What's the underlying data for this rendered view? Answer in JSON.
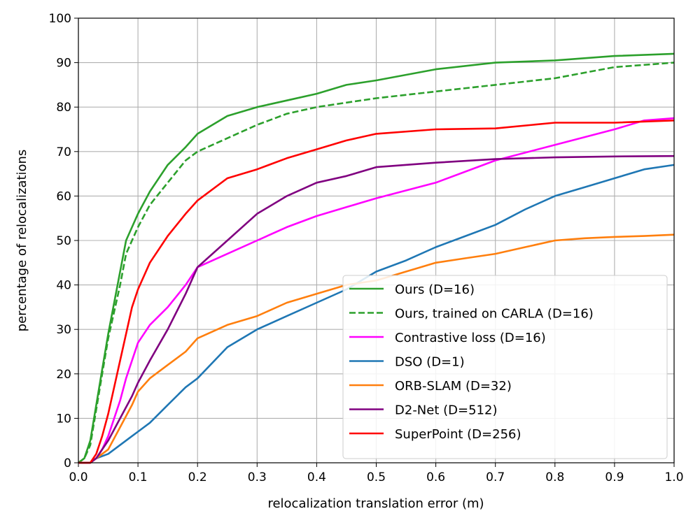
{
  "chart_data": {
    "type": "line",
    "xlabel": "relocalization translation error (m)",
    "ylabel": "percentage of relocalizations",
    "xlim": [
      0.0,
      1.0
    ],
    "ylim": [
      0,
      100
    ],
    "x_ticks": [
      "0.0",
      "0.1",
      "0.2",
      "0.3",
      "0.4",
      "0.5",
      "0.6",
      "0.7",
      "0.8",
      "0.9",
      "1.0"
    ],
    "y_ticks": [
      "0",
      "10",
      "20",
      "30",
      "40",
      "50",
      "60",
      "70",
      "80",
      "90",
      "100"
    ],
    "grid": true,
    "legend_position": "bottom-right",
    "series": [
      {
        "name": "Ours (D=16)",
        "color": "#2ca02c",
        "dash": "solid",
        "x": [
          0.0,
          0.01,
          0.02,
          0.03,
          0.04,
          0.05,
          0.06,
          0.07,
          0.08,
          0.09,
          0.1,
          0.12,
          0.15,
          0.18,
          0.2,
          0.25,
          0.3,
          0.35,
          0.4,
          0.45,
          0.5,
          0.6,
          0.7,
          0.8,
          0.9,
          1.0
        ],
        "y": [
          0,
          1,
          5,
          13,
          21,
          29,
          36,
          43,
          50,
          53,
          56,
          61,
          67,
          71,
          74,
          78,
          80,
          81.5,
          83,
          85,
          86,
          88.5,
          90,
          90.5,
          91.5,
          92
        ]
      },
      {
        "name": "Ours, trained on CARLA (D=16)",
        "color": "#2ca02c",
        "dash": "dashed",
        "x": [
          0.0,
          0.01,
          0.02,
          0.03,
          0.04,
          0.05,
          0.06,
          0.07,
          0.08,
          0.09,
          0.1,
          0.12,
          0.15,
          0.18,
          0.2,
          0.25,
          0.3,
          0.35,
          0.4,
          0.45,
          0.5,
          0.6,
          0.7,
          0.8,
          0.9,
          1.0
        ],
        "y": [
          0,
          1,
          4,
          12,
          20,
          28,
          34,
          40,
          47,
          50,
          53,
          58,
          63,
          68,
          70,
          73,
          76,
          78.5,
          80,
          81,
          82,
          83.5,
          85,
          86.5,
          89,
          90
        ]
      },
      {
        "name": "Contrastive loss (D=16)",
        "color": "#ff00ff",
        "dash": "solid",
        "x": [
          0.0,
          0.02,
          0.03,
          0.04,
          0.05,
          0.06,
          0.07,
          0.08,
          0.09,
          0.1,
          0.12,
          0.15,
          0.18,
          0.2,
          0.25,
          0.3,
          0.35,
          0.4,
          0.45,
          0.5,
          0.6,
          0.7,
          0.8,
          0.9,
          0.95,
          1.0
        ],
        "y": [
          0,
          0,
          1,
          3,
          6,
          10,
          14,
          19,
          23,
          27,
          31,
          35,
          40,
          44,
          47,
          50,
          53,
          55.5,
          57.5,
          59.5,
          63,
          68,
          71.5,
          75,
          77,
          77.5
        ]
      },
      {
        "name": "DSO (D=1)",
        "color": "#1f77b4",
        "dash": "solid",
        "x": [
          0.0,
          0.02,
          0.03,
          0.05,
          0.07,
          0.09,
          0.1,
          0.12,
          0.15,
          0.18,
          0.2,
          0.25,
          0.3,
          0.35,
          0.4,
          0.45,
          0.5,
          0.55,
          0.6,
          0.65,
          0.7,
          0.75,
          0.8,
          0.85,
          0.9,
          0.95,
          1.0
        ],
        "y": [
          0,
          0,
          1,
          2,
          4,
          6,
          7,
          9,
          13,
          17,
          19,
          26,
          30,
          33,
          36,
          39,
          43,
          45.5,
          48.5,
          51,
          53.5,
          57,
          60,
          62,
          64,
          66,
          67
        ]
      },
      {
        "name": "ORB-SLAM (D=32)",
        "color": "#ff7f0e",
        "dash": "solid",
        "x": [
          0.0,
          0.02,
          0.03,
          0.05,
          0.07,
          0.09,
          0.1,
          0.12,
          0.15,
          0.18,
          0.2,
          0.25,
          0.3,
          0.35,
          0.4,
          0.45,
          0.5,
          0.55,
          0.6,
          0.65,
          0.7,
          0.75,
          0.8,
          0.85,
          0.9,
          0.95,
          1.0
        ],
        "y": [
          0,
          0,
          1,
          3,
          8,
          13,
          16,
          19,
          22,
          25,
          28,
          31,
          33,
          36,
          38,
          40,
          41,
          43,
          45,
          46,
          47,
          48.5,
          50,
          50.5,
          50.8,
          51,
          51.3
        ]
      },
      {
        "name": "D2-Net (D=512)",
        "color": "#800080",
        "dash": "solid",
        "x": [
          0.0,
          0.02,
          0.03,
          0.04,
          0.05,
          0.07,
          0.09,
          0.1,
          0.12,
          0.15,
          0.18,
          0.2,
          0.25,
          0.3,
          0.35,
          0.4,
          0.45,
          0.5,
          0.6,
          0.7,
          0.8,
          0.9,
          1.0
        ],
        "y": [
          0,
          0,
          1,
          3,
          5,
          10,
          15,
          18,
          23,
          30,
          38,
          44,
          50,
          56,
          60,
          63,
          64.5,
          66.5,
          67.5,
          68.3,
          68.7,
          68.9,
          69
        ]
      },
      {
        "name": "SuperPoint (D=256)",
        "color": "#ff0000",
        "dash": "solid",
        "x": [
          0.0,
          0.02,
          0.03,
          0.04,
          0.05,
          0.06,
          0.07,
          0.08,
          0.09,
          0.1,
          0.12,
          0.15,
          0.18,
          0.2,
          0.25,
          0.3,
          0.35,
          0.4,
          0.45,
          0.5,
          0.6,
          0.7,
          0.8,
          0.9,
          1.0
        ],
        "y": [
          0,
          0,
          2,
          6,
          11,
          17,
          23,
          29,
          35,
          39,
          45,
          51,
          56,
          59,
          64,
          66,
          68.5,
          70.5,
          72.5,
          74,
          75,
          75.2,
          76.5,
          76.5,
          77
        ]
      }
    ]
  }
}
